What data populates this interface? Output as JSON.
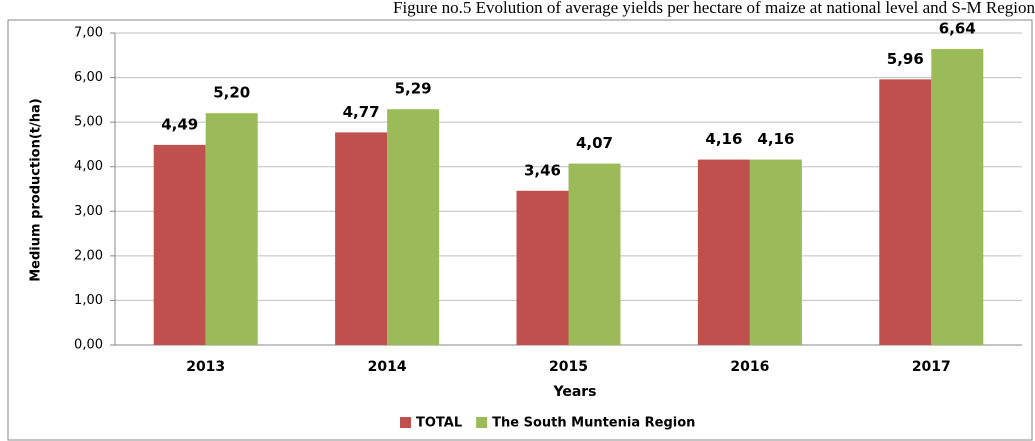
{
  "chart_data": {
    "type": "bar",
    "title": "Figure no.5 Evolution of average yields per hectare of maize at national level and S-M Region",
    "xlabel": "Years",
    "ylabel": "Medium production(t/ha)",
    "categories": [
      "2013",
      "2014",
      "2015",
      "2016",
      "2017"
    ],
    "series": [
      {
        "name": "TOTAL",
        "color": "#c0504d",
        "values": [
          4.49,
          4.77,
          3.46,
          4.16,
          5.96
        ],
        "value_labels": [
          "4,49",
          "4,77",
          "3,46",
          "4,16",
          "5,96"
        ]
      },
      {
        "name": "The South Muntenia Region",
        "color": "#9bbb59",
        "values": [
          5.2,
          5.29,
          4.07,
          4.16,
          6.64
        ],
        "value_labels": [
          "5,20",
          "5,29",
          "4,07",
          "4,16",
          "6,64"
        ]
      }
    ],
    "ylim": [
      0,
      7
    ],
    "yticks": [
      {
        "value": 0,
        "label": "0,00"
      },
      {
        "value": 1,
        "label": "1,00"
      },
      {
        "value": 2,
        "label": "2,00"
      },
      {
        "value": 3,
        "label": "3,00"
      },
      {
        "value": 4,
        "label": "4,00"
      },
      {
        "value": 5,
        "label": "5,00"
      },
      {
        "value": 6,
        "label": "6,00"
      },
      {
        "value": 7,
        "label": "7,00"
      }
    ],
    "grid": true,
    "legend": "bottom"
  }
}
